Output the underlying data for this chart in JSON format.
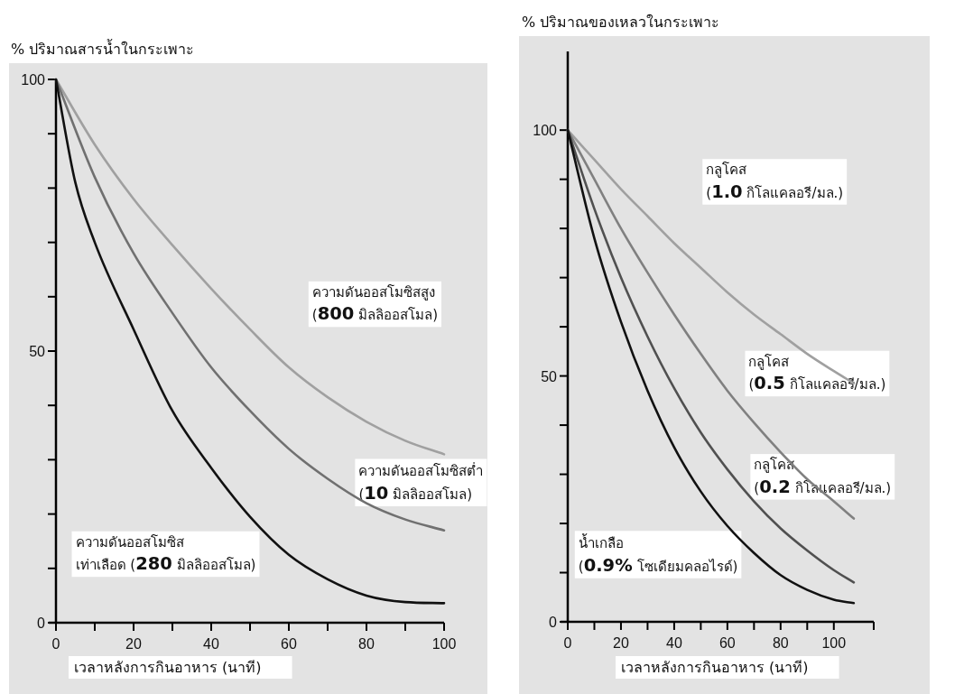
{
  "chart_data": [
    {
      "type": "line",
      "ylabel": "% ปริมาณสารน้ำในกระเพาะ",
      "xlabel": "เวลาหลังการกินอาหาร (นาที)",
      "xlim": [
        0,
        100
      ],
      "ylim": [
        0,
        100
      ],
      "xticks": [
        0,
        {
          "value": 10,
          "label": null
        },
        20,
        {
          "value": 30,
          "label": null
        },
        40,
        {
          "value": 50,
          "label": null
        },
        60,
        {
          "value": 70,
          "label": null
        },
        80,
        {
          "value": 90,
          "label": null
        },
        100
      ],
      "yticks": [
        0,
        {
          "value": 10,
          "label": null
        },
        {
          "value": 20,
          "label": null
        },
        {
          "value": 30,
          "label": null
        },
        {
          "value": 40,
          "label": null
        },
        50,
        {
          "value": 60,
          "label": null
        },
        {
          "value": 70,
          "label": null
        },
        {
          "value": 80,
          "label": null
        },
        {
          "value": 90,
          "label": null
        },
        100
      ],
      "grid": false,
      "legend": false,
      "marker": "none",
      "line_style": "solid",
      "x": [
        0,
        10,
        20,
        30,
        40,
        50,
        60,
        70,
        80,
        90,
        100
      ],
      "series": [
        {
          "name": "ความดันออสโมซิสสูง\n(800 มิลลิออสโมล)",
          "color": "#a0a0a0",
          "values": [
            100,
            88,
            78,
            69.5,
            61.5,
            54,
            47,
            41.5,
            37,
            33.5,
            31
          ]
        },
        {
          "name": "ความดันออสโมซิสต่ำ\n(10 มิลลิออสโมล)",
          "color": "#707070",
          "values": [
            100,
            82,
            68,
            57,
            47,
            39,
            32,
            26.5,
            22,
            19,
            17
          ]
        },
        {
          "name": "ความดันออสโมซิส\nเท่าเลือด (280 มิลลิออสโมล)",
          "color": "#111111",
          "x": [
            0,
            5,
            10,
            20,
            30,
            40,
            50,
            60,
            70,
            80,
            90,
            100
          ],
          "values": [
            100,
            81,
            70,
            54,
            39,
            28.5,
            19.5,
            12.5,
            8,
            5,
            3.8,
            3.6
          ]
        }
      ]
    },
    {
      "type": "line",
      "ylabel": "% ปริมาณของเหลวในกระเพาะ",
      "xlabel": "เวลาหลังการกินอาหาร (นาที)",
      "xlim": [
        0,
        115
      ],
      "ylim": [
        0,
        116
      ],
      "xticks": [
        0,
        {
          "value": 10,
          "label": null
        },
        20,
        {
          "value": 30,
          "label": null
        },
        40,
        {
          "value": 50,
          "label": null
        },
        60,
        {
          "value": 70,
          "label": null
        },
        80,
        {
          "value": 90,
          "label": null
        },
        100,
        {
          "value": 115,
          "label": null
        }
      ],
      "yticks": [
        0,
        {
          "value": 10,
          "label": null
        },
        {
          "value": 20,
          "label": null
        },
        {
          "value": 30,
          "label": null
        },
        {
          "value": 40,
          "label": null
        },
        50,
        {
          "value": 60,
          "label": null
        },
        {
          "value": 70,
          "label": null
        },
        {
          "value": 80,
          "label": null
        },
        {
          "value": 90,
          "label": null
        },
        100
      ],
      "grid": false,
      "legend": false,
      "marker": "none",
      "line_style": "solid",
      "x": [
        0,
        10,
        20,
        30,
        40,
        50,
        60,
        70,
        80,
        90,
        100,
        107.5
      ],
      "series": [
        {
          "name": "กลูโคส\n(1.0 กิโลแคลอรี/มล.)",
          "color": "#a0a0a0",
          "values": [
            100,
            94,
            88,
            82.5,
            77,
            72,
            67,
            62.5,
            58.5,
            54.5,
            51,
            48.5
          ]
        },
        {
          "name": "กลูโคส\n(0.5 กิโลแคลอรี/มล.)",
          "color": "#808080",
          "values": [
            100,
            90,
            80,
            71,
            62.5,
            54.5,
            47,
            40.5,
            34.5,
            29,
            24.5,
            21
          ]
        },
        {
          "name": "กลูโคส\n(0.2 กิโลแคลอรี/มล.)",
          "color": "#505050",
          "values": [
            100,
            84,
            70,
            58,
            47.5,
            38.5,
            31,
            24.5,
            19,
            14.5,
            10.5,
            8
          ]
        },
        {
          "name": "น้ำเกลือ\n(0.9% โซเดียมคลอไรด์)",
          "color": "#111111",
          "values": [
            100,
            78,
            61,
            47,
            35.5,
            26.5,
            19.5,
            14,
            9.5,
            6.5,
            4.5,
            3.8
          ]
        }
      ]
    }
  ]
}
